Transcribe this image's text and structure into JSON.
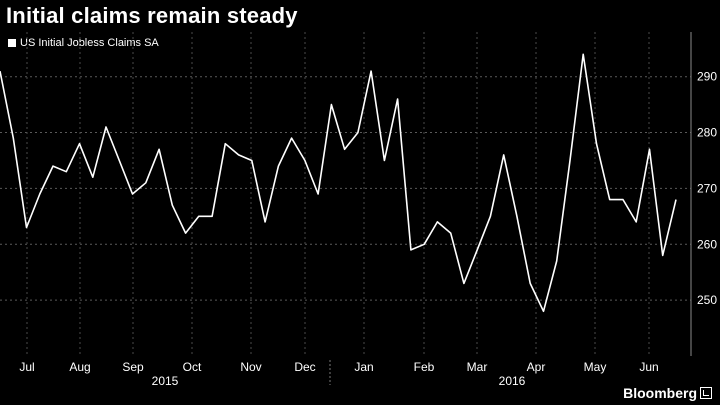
{
  "title": "Initial claims remain steady",
  "legend": {
    "label": "US Initial Jobless Claims SA",
    "color": "#ffffff"
  },
  "brand": "Bloomberg",
  "chart_data": {
    "type": "line",
    "title": "Initial claims remain steady",
    "xlabel": "",
    "ylabel": "",
    "ylim": [
      240,
      298
    ],
    "yticks": [
      250,
      260,
      270,
      280,
      290
    ],
    "y_axis_side": "right",
    "grid": true,
    "legend_position": "top-left",
    "x_month_labels": [
      "Jul",
      "Aug",
      "Sep",
      "Oct",
      "Nov",
      "Dec",
      "Jan",
      "Feb",
      "Mar",
      "Apr",
      "May",
      "Jun"
    ],
    "x_year_labels": [
      "2015",
      "2016"
    ],
    "series": [
      {
        "name": "US Initial Jobless Claims SA",
        "color": "#ffffff",
        "values": [
          291,
          279,
          263,
          269,
          274,
          273,
          278,
          272,
          281,
          275,
          269,
          271,
          277,
          267,
          262,
          265,
          265,
          278,
          276,
          275,
          264,
          274,
          279,
          275,
          269,
          285,
          277,
          280,
          291,
          275,
          286,
          259,
          260,
          264,
          262,
          253,
          259,
          265,
          276,
          265,
          253,
          248,
          257,
          275,
          294,
          278,
          268,
          268,
          264,
          277,
          258,
          268
        ]
      }
    ]
  }
}
